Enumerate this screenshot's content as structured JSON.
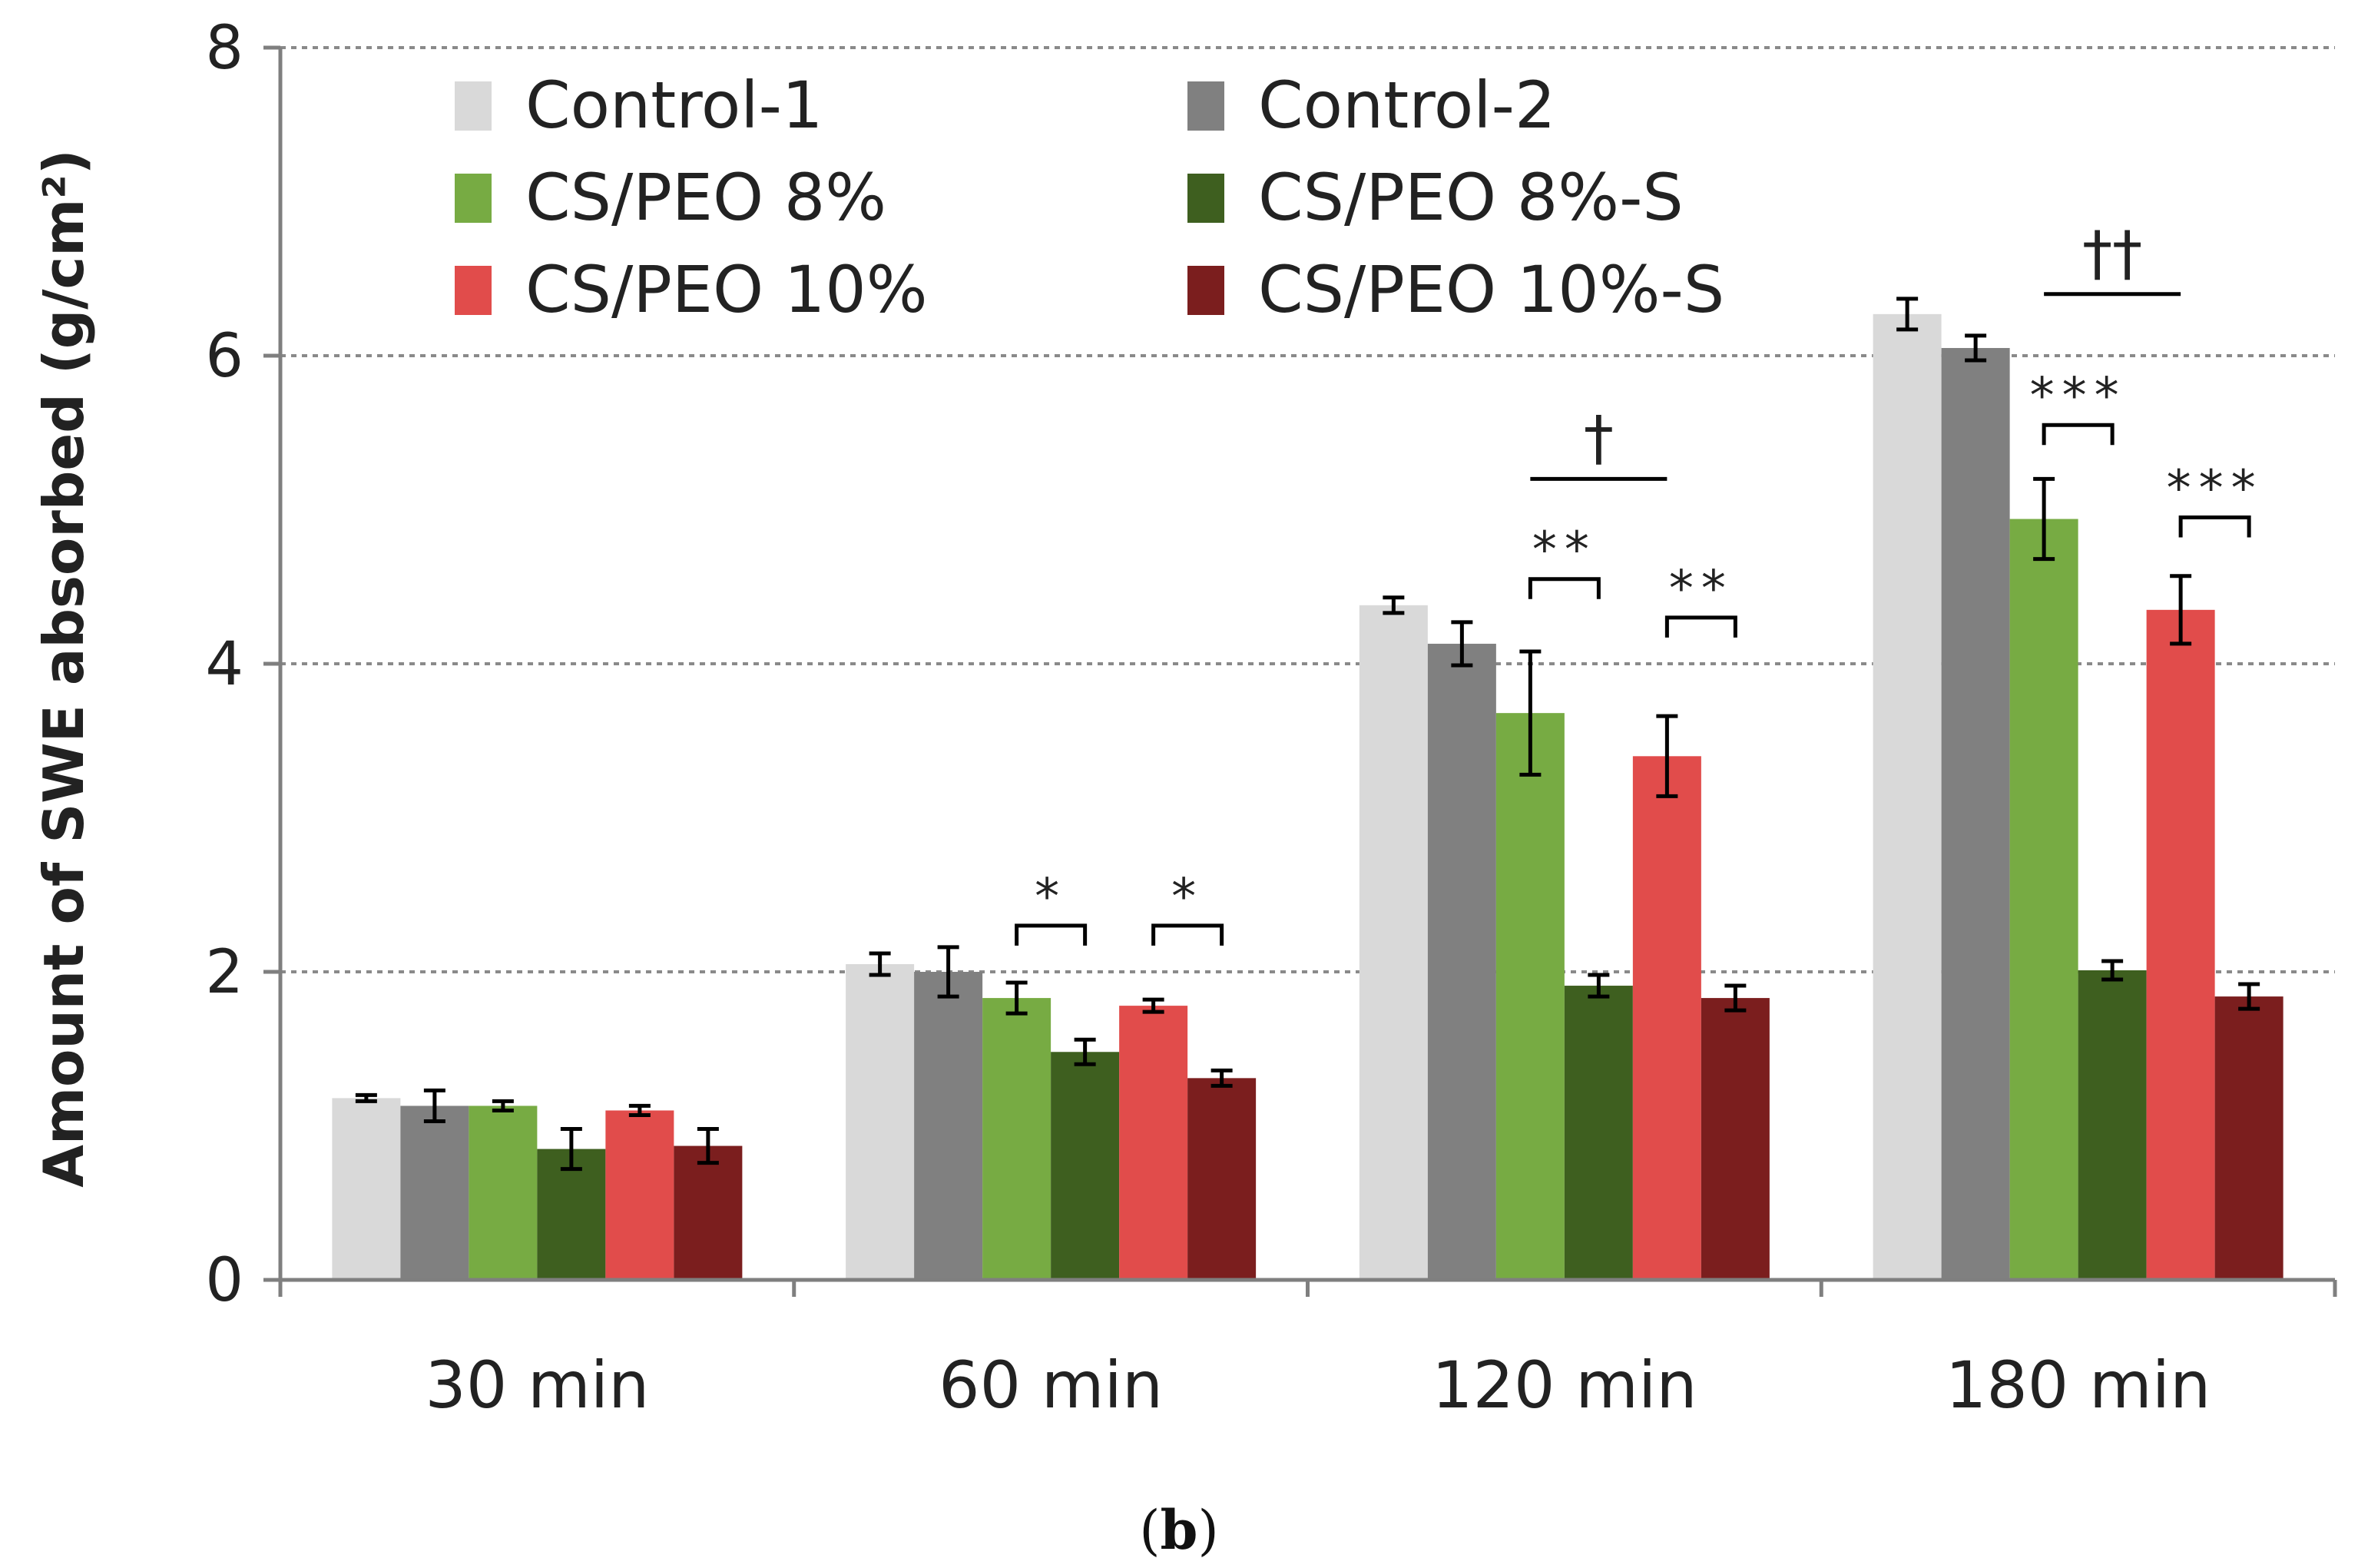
{
  "chart_data": {
    "type": "bar",
    "title": "",
    "xlabel": "",
    "ylabel": "Amount of SWE absorbed (g/cm²)",
    "ylim": [
      0,
      8
    ],
    "yticks": [
      0,
      2,
      4,
      6,
      8
    ],
    "grid": true,
    "legend_position": "top-left",
    "categories": [
      "30 min",
      "60 min",
      "120 min",
      "180 min"
    ],
    "series": [
      {
        "name": "Control-1",
        "color": "#d9d9d9",
        "values": [
          1.18,
          2.05,
          4.38,
          6.27
        ],
        "errors": [
          0.02,
          0.07,
          0.05,
          0.1
        ]
      },
      {
        "name": "Control-2",
        "color": "#808080",
        "values": [
          1.13,
          2.0,
          4.13,
          6.05
        ],
        "errors": [
          0.1,
          0.16,
          0.14,
          0.08
        ]
      },
      {
        "name": "CS/PEO 8%",
        "color": "#77ab43",
        "values": [
          1.13,
          1.83,
          3.68,
          4.94
        ],
        "errors": [
          0.03,
          0.1,
          0.4,
          0.26
        ]
      },
      {
        "name": "CS/PEO 8%-S",
        "color": "#3e5f1f",
        "values": [
          0.85,
          1.48,
          1.91,
          2.01
        ],
        "errors": [
          0.13,
          0.08,
          0.07,
          0.06
        ]
      },
      {
        "name": "CS/PEO 10%",
        "color": "#e14c4b",
        "values": [
          1.1,
          1.78,
          3.4,
          4.35
        ],
        "errors": [
          0.03,
          0.04,
          0.26,
          0.22
        ]
      },
      {
        "name": "CS/PEO 10%-S",
        "color": "#7b1e1e",
        "values": [
          0.87,
          1.31,
          1.83,
          1.84
        ],
        "errors": [
          0.11,
          0.05,
          0.08,
          0.08
        ]
      }
    ],
    "annotations": [
      {
        "type": "bracket",
        "category": 1,
        "from": 2,
        "to": 3,
        "text": "*",
        "y": 2.3
      },
      {
        "type": "bracket",
        "category": 1,
        "from": 4,
        "to": 5,
        "text": "*",
        "y": 2.3
      },
      {
        "type": "bracket",
        "category": 2,
        "from": 2,
        "to": 3,
        "text": "**",
        "y": 4.55
      },
      {
        "type": "bracket",
        "category": 2,
        "from": 4,
        "to": 5,
        "text": "**",
        "y": 4.3
      },
      {
        "type": "line",
        "category": 2,
        "from": 2,
        "to": 4,
        "text": "†",
        "y": 5.2
      },
      {
        "type": "bracket",
        "category": 3,
        "from": 2,
        "to": 3,
        "text": "***",
        "y": 5.55
      },
      {
        "type": "bracket",
        "category": 3,
        "from": 4,
        "to": 5,
        "text": "***",
        "y": 4.95
      },
      {
        "type": "line",
        "category": 3,
        "from": 2,
        "to": 4,
        "text": "††",
        "y": 6.4
      }
    ]
  },
  "caption": "b"
}
